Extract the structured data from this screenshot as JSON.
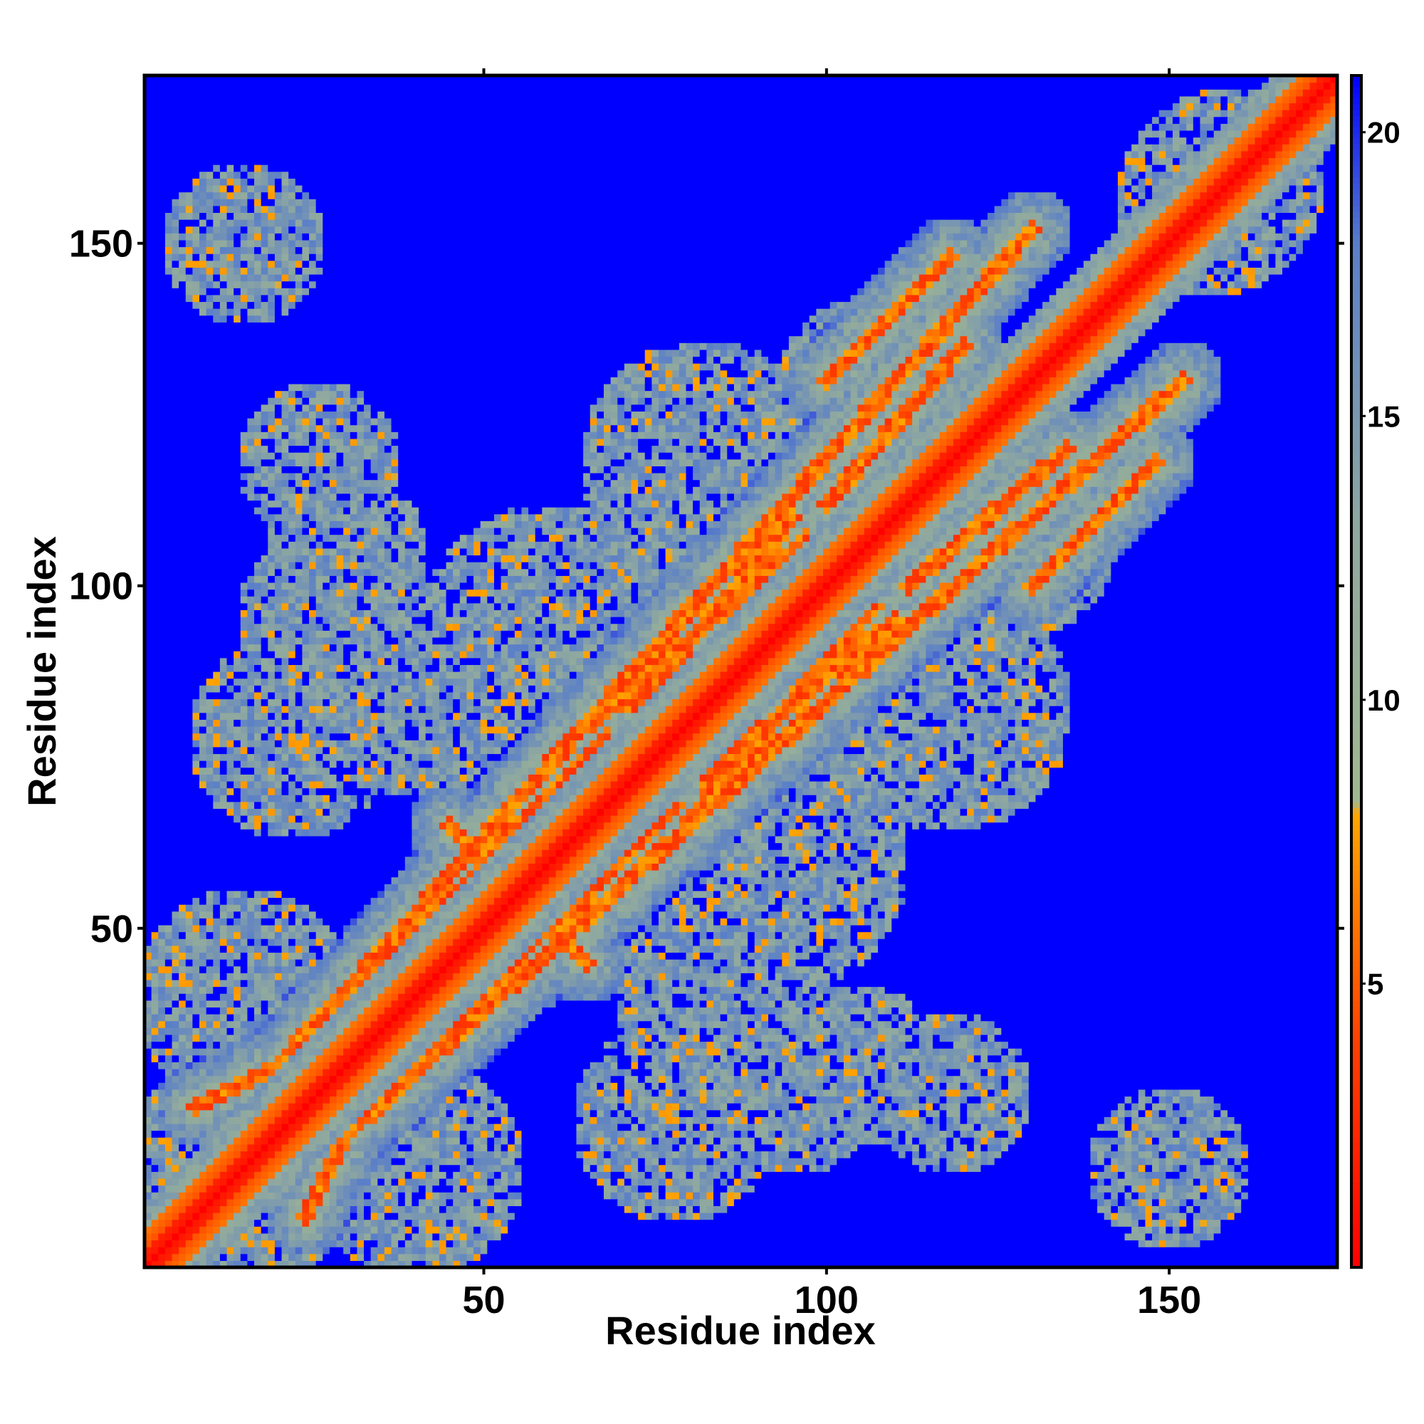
{
  "chart_data": {
    "type": "heatmap",
    "title": "",
    "xlabel": "Residue index",
    "ylabel": "Residue index",
    "xlim": [
      1,
      174
    ],
    "ylim": [
      1,
      174
    ],
    "x_ticks": [
      50,
      100,
      150
    ],
    "y_ticks": [
      50,
      100,
      150
    ],
    "x_tick_labels": [
      "50",
      "100",
      "150"
    ],
    "y_tick_labels": [
      "50",
      "100",
      "150"
    ],
    "colorbar": {
      "range": [
        0,
        21
      ],
      "ticks": [
        5,
        10,
        15,
        20
      ],
      "tick_labels": [
        "5",
        "10",
        "15",
        "20"
      ],
      "stops": [
        {
          "value": 0,
          "color": "#ff0000"
        },
        {
          "value": 4,
          "color": "#ff4000"
        },
        {
          "value": 8,
          "color": "#ffa500"
        },
        {
          "value": 8.2,
          "color": "#a0b890"
        },
        {
          "value": 13,
          "color": "#8fa8a0"
        },
        {
          "value": 18,
          "color": "#5a7fc8"
        },
        {
          "value": 21,
          "color": "#0000ff"
        }
      ]
    },
    "matrix_description": "Residue-residue distance map, symmetric about the diagonal; near-diagonal values ~0-4, off-diagonal contact regions 5-15, background 21",
    "contact_bands": [
      {
        "from": [
          20,
          30
        ],
        "to": [
          8,
          24
        ],
        "kind": "antiparallel"
      },
      {
        "from": [
          45,
          65
        ],
        "to": [
          65,
          45
        ],
        "kind": "cross"
      },
      {
        "from": [
          66,
          80
        ],
        "to": [
          97,
          107
        ],
        "kind": "parallel"
      },
      {
        "from": [
          95,
          110
        ],
        "to": [
          72,
          82
        ],
        "kind": "parallel"
      },
      {
        "from": [
          100,
          130
        ],
        "to": [
          118,
          148
        ],
        "kind": "parallel"
      },
      {
        "from": [
          120,
          135
        ],
        "to": [
          100,
          112
        ],
        "kind": "parallel"
      },
      {
        "from": [
          68,
          78
        ],
        "to": [
          20,
          28
        ],
        "kind": "antiparallel"
      },
      {
        "from": [
          20,
          30
        ],
        "to": [
          130,
          152
        ],
        "kind": "offdiag"
      }
    ]
  }
}
